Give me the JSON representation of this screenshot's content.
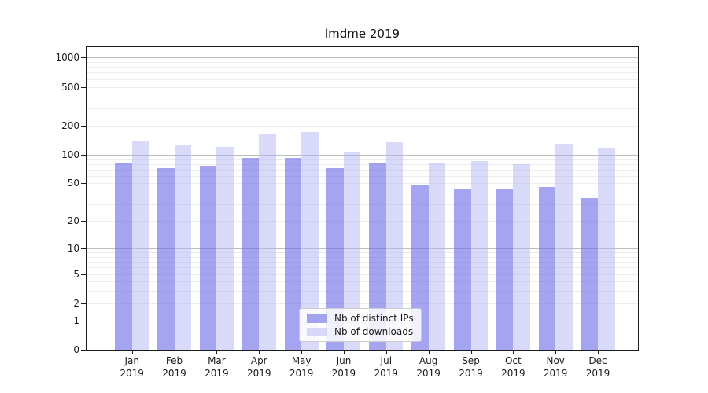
{
  "chart_data": {
    "type": "bar",
    "title": "lmdme 2019",
    "categories": [
      "Jan",
      "Feb",
      "Mar",
      "Apr",
      "May",
      "Jun",
      "Jul",
      "Aug",
      "Sep",
      "Oct",
      "Nov",
      "Dec"
    ],
    "year_label": "2019",
    "series": [
      {
        "name": "Nb of distinct IPs",
        "color": "rgba(108,108,232,0.62)",
        "values": [
          83,
          72,
          76,
          93,
          93,
          72,
          83,
          48,
          44,
          44,
          46,
          35
        ]
      },
      {
        "name": "Nb of downloads",
        "color": "rgba(180,180,243,0.5)",
        "values": [
          140,
          125,
          120,
          163,
          170,
          107,
          134,
          82,
          86,
          80,
          129,
          117
        ]
      }
    ],
    "yscale": "log1p",
    "ylim": [
      0,
      1281
    ],
    "yticks": [
      0,
      1,
      2,
      5,
      10,
      20,
      50,
      100,
      200,
      500,
      1000
    ],
    "major_gridlines": [
      1,
      10,
      100,
      1000
    ],
    "minor_gridlines": [
      2,
      3,
      4,
      5,
      6,
      7,
      8,
      9,
      20,
      30,
      40,
      50,
      60,
      70,
      80,
      90,
      200,
      300,
      400,
      500,
      600,
      700,
      800,
      900
    ],
    "grid": true,
    "legend_position": "lower center",
    "xlabel": "",
    "ylabel": ""
  },
  "colors": {
    "axis": "#1a1a1a",
    "major_grid": "#bdbdbd",
    "minor_grid": "#ededed",
    "legend_border": "#cccccc"
  }
}
